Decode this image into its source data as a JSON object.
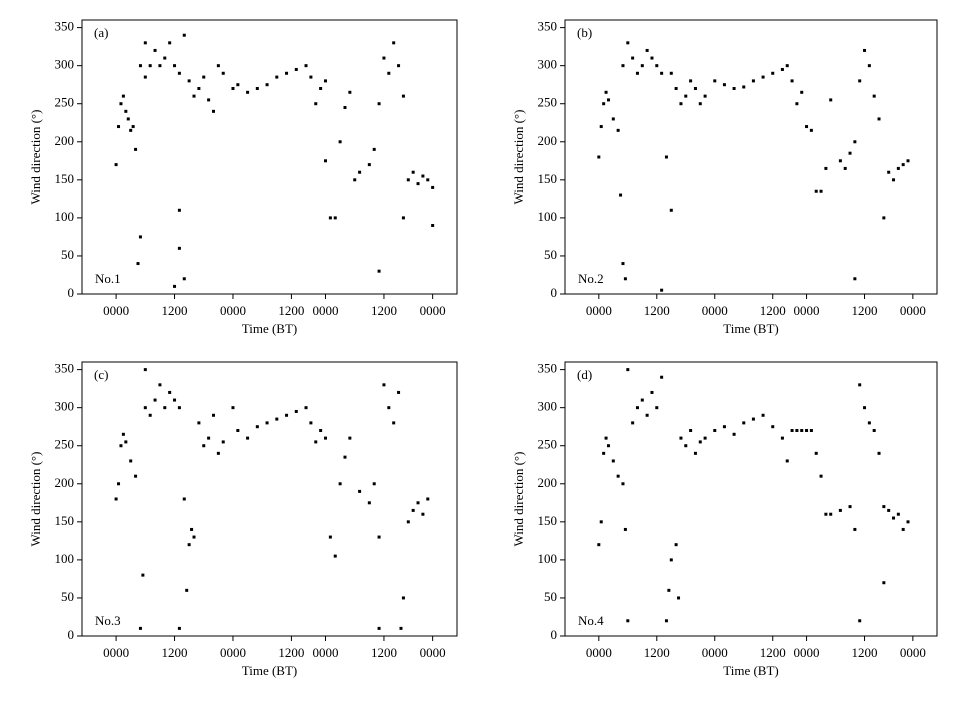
{
  "chart_data": [
    {
      "type": "scatter",
      "panel_label": "(a)",
      "annotation": "No.1",
      "xlabel": "Time (BT)",
      "ylabel": "Wind direction (°)",
      "xlim": [
        -7,
        70
      ],
      "ylim": [
        0,
        360
      ],
      "xticks": [
        {
          "value": 0,
          "label": "0000"
        },
        {
          "value": 12,
          "label": "1200"
        },
        {
          "value": 24,
          "label": "0000"
        },
        {
          "value": 36,
          "label": "1200"
        },
        {
          "value": 43,
          "label": "0000"
        },
        {
          "value": 55,
          "label": "1200"
        },
        {
          "value": 65,
          "label": "0000"
        }
      ],
      "yticks": [
        0,
        50,
        100,
        150,
        200,
        250,
        300,
        350
      ],
      "color": "#000000",
      "x": [
        0,
        0.5,
        1,
        1.5,
        2,
        2.5,
        3,
        3.5,
        4,
        4.5,
        5,
        5,
        6,
        6,
        7,
        8,
        9,
        10,
        11,
        12,
        13,
        14,
        12,
        13,
        13,
        14,
        15,
        16,
        17,
        18,
        19,
        20,
        21,
        22,
        24,
        25,
        27,
        29,
        31,
        33,
        35,
        37,
        39,
        40,
        41,
        42,
        43,
        43,
        44,
        45,
        46,
        47,
        48,
        49,
        50,
        52,
        53,
        54,
        54,
        55,
        56,
        57,
        58,
        59,
        59,
        60,
        61,
        62,
        63,
        64,
        65,
        65
      ],
      "values": [
        170,
        220,
        250,
        260,
        240,
        230,
        215,
        220,
        190,
        40,
        75,
        300,
        330,
        285,
        300,
        320,
        300,
        310,
        330,
        300,
        290,
        340,
        10,
        110,
        60,
        20,
        280,
        260,
        270,
        285,
        255,
        240,
        300,
        290,
        270,
        275,
        265,
        270,
        275,
        285,
        290,
        295,
        300,
        285,
        250,
        270,
        280,
        175,
        100,
        100,
        200,
        245,
        265,
        150,
        160,
        170,
        190,
        250,
        30,
        310,
        290,
        330,
        300,
        260,
        100,
        150,
        160,
        145,
        155,
        150,
        140,
        90
      ]
    },
    {
      "type": "scatter",
      "panel_label": "(b)",
      "annotation": "No.2",
      "xlabel": "Time (BT)",
      "ylabel": "Wind direction (°)",
      "xlim": [
        -7,
        70
      ],
      "ylim": [
        0,
        360
      ],
      "xticks": [
        {
          "value": 0,
          "label": "0000"
        },
        {
          "value": 12,
          "label": "1200"
        },
        {
          "value": 24,
          "label": "0000"
        },
        {
          "value": 36,
          "label": "1200"
        },
        {
          "value": 43,
          "label": "0000"
        },
        {
          "value": 55,
          "label": "1200"
        },
        {
          "value": 65,
          "label": "0000"
        }
      ],
      "yticks": [
        0,
        50,
        100,
        150,
        200,
        250,
        300,
        350
      ],
      "color": "#000000",
      "x": [
        0,
        0.5,
        1,
        1.5,
        2,
        3,
        4,
        4.5,
        5,
        5,
        5.5,
        6,
        7,
        8,
        9,
        10,
        11,
        12,
        13,
        13,
        14,
        15,
        15,
        16,
        17,
        18,
        19,
        20,
        21,
        22,
        24,
        26,
        28,
        30,
        32,
        34,
        36,
        38,
        39,
        40,
        41,
        42,
        43,
        44,
        45,
        46,
        47,
        48,
        50,
        51,
        52,
        53,
        53,
        54,
        55,
        56,
        57,
        58,
        59,
        60,
        61,
        62,
        63,
        64
      ],
      "values": [
        180,
        220,
        250,
        265,
        255,
        230,
        215,
        130,
        40,
        300,
        20,
        330,
        310,
        290,
        300,
        320,
        310,
        300,
        290,
        5,
        180,
        110,
        290,
        270,
        250,
        260,
        280,
        270,
        250,
        260,
        280,
        275,
        270,
        272,
        280,
        285,
        290,
        295,
        300,
        280,
        250,
        265,
        220,
        215,
        135,
        135,
        165,
        255,
        175,
        165,
        185,
        200,
        20,
        280,
        320,
        300,
        260,
        230,
        100,
        160,
        150,
        165,
        170,
        175
      ]
    },
    {
      "type": "scatter",
      "panel_label": "(c)",
      "annotation": "No.3",
      "xlabel": "Time (BT)",
      "ylabel": "Wind direction (°)",
      "xlim": [
        -7,
        70
      ],
      "ylim": [
        0,
        360
      ],
      "xticks": [
        {
          "value": 0,
          "label": "0000"
        },
        {
          "value": 12,
          "label": "1200"
        },
        {
          "value": 24,
          "label": "0000"
        },
        {
          "value": 36,
          "label": "1200"
        },
        {
          "value": 43,
          "label": "0000"
        },
        {
          "value": 55,
          "label": "1200"
        },
        {
          "value": 65,
          "label": "0000"
        }
      ],
      "yticks": [
        0,
        50,
        100,
        150,
        200,
        250,
        300,
        350
      ],
      "color": "#000000",
      "x": [
        0,
        0.5,
        1,
        1.5,
        2,
        3,
        4,
        5,
        5.5,
        6,
        6,
        7,
        8,
        9,
        10,
        11,
        12,
        13,
        13,
        14,
        14.5,
        15,
        15.5,
        16,
        17,
        18,
        19,
        20,
        21,
        22,
        24,
        25,
        27,
        29,
        31,
        33,
        35,
        37,
        39,
        40,
        41,
        42,
        43,
        44,
        45,
        46,
        47,
        48,
        50,
        52,
        53,
        54,
        54,
        55,
        56,
        57,
        58,
        58.5,
        59,
        60,
        61,
        62,
        63,
        64
      ],
      "values": [
        180,
        200,
        250,
        265,
        255,
        230,
        210,
        10,
        80,
        350,
        300,
        290,
        310,
        330,
        300,
        320,
        310,
        300,
        10,
        180,
        60,
        120,
        140,
        130,
        280,
        250,
        260,
        290,
        240,
        255,
        300,
        270,
        260,
        275,
        280,
        285,
        290,
        295,
        300,
        280,
        255,
        270,
        260,
        130,
        105,
        200,
        235,
        260,
        190,
        175,
        200,
        130,
        10,
        330,
        300,
        280,
        320,
        10,
        50,
        150,
        165,
        175,
        160,
        180
      ]
    },
    {
      "type": "scatter",
      "panel_label": "(d)",
      "annotation": "No.4",
      "xlabel": "Time (BT)",
      "ylabel": "Wind direction (°)",
      "xlim": [
        -7,
        70
      ],
      "ylim": [
        0,
        360
      ],
      "xticks": [
        {
          "value": 0,
          "label": "0000"
        },
        {
          "value": 12,
          "label": "1200"
        },
        {
          "value": 24,
          "label": "0000"
        },
        {
          "value": 36,
          "label": "1200"
        },
        {
          "value": 43,
          "label": "0000"
        },
        {
          "value": 55,
          "label": "1200"
        },
        {
          "value": 65,
          "label": "0000"
        }
      ],
      "yticks": [
        0,
        50,
        100,
        150,
        200,
        250,
        300,
        350
      ],
      "color": "#000000",
      "x": [
        0,
        0.5,
        1,
        1.5,
        2,
        3,
        4,
        5,
        5.5,
        6,
        6,
        7,
        8,
        9,
        10,
        11,
        12,
        13,
        14,
        14.5,
        15,
        16,
        16.5,
        17,
        18,
        19,
        20,
        21,
        22,
        24,
        26,
        28,
        30,
        32,
        34,
        36,
        38,
        39,
        40,
        41,
        42,
        43,
        44,
        45,
        46,
        47,
        48,
        50,
        52,
        53,
        54,
        54,
        55,
        56,
        57,
        58,
        59,
        59,
        60,
        61,
        62,
        63,
        64
      ],
      "values": [
        120,
        150,
        240,
        260,
        250,
        230,
        210,
        200,
        140,
        20,
        350,
        280,
        300,
        310,
        290,
        320,
        300,
        340,
        20,
        60,
        100,
        120,
        50,
        260,
        250,
        270,
        240,
        255,
        260,
        270,
        275,
        265,
        280,
        285,
        290,
        275,
        260,
        230,
        270,
        270,
        270,
        270,
        270,
        240,
        210,
        160,
        160,
        165,
        170,
        140,
        20,
        330,
        300,
        280,
        270,
        240,
        70,
        170,
        165,
        155,
        160,
        140,
        150
      ]
    }
  ]
}
